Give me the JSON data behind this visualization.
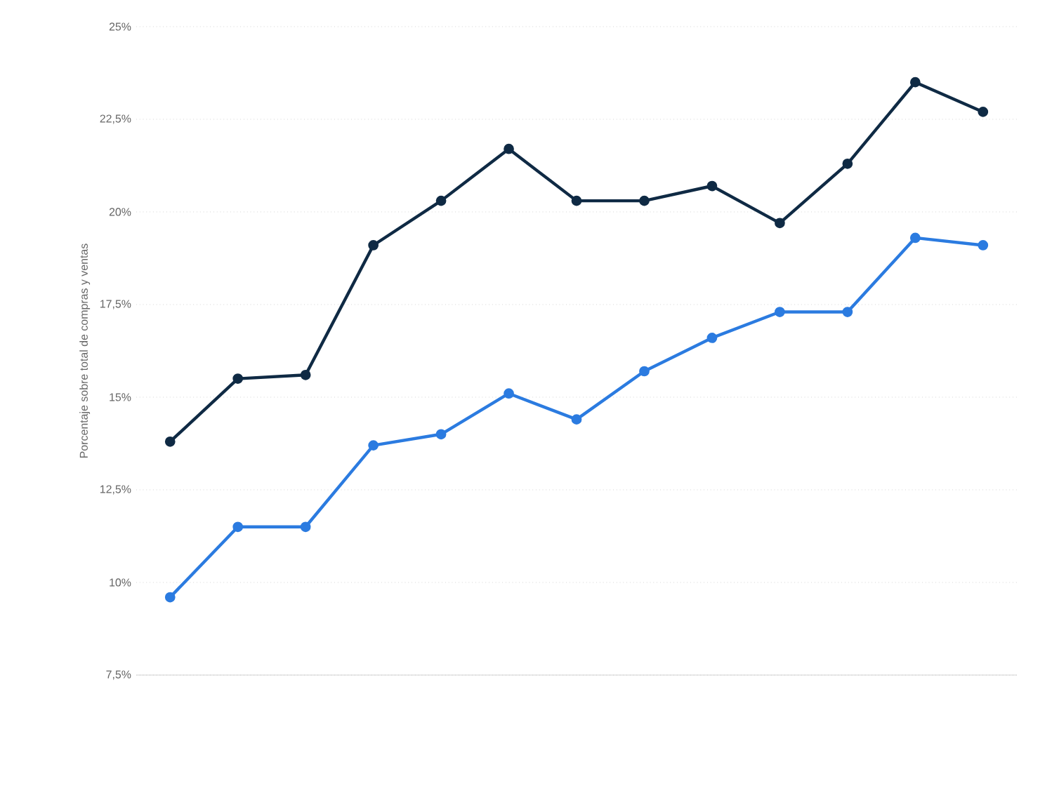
{
  "chart_data": {
    "type": "line",
    "ylabel": "Porcentaje sobre total de compras y ventas",
    "categories": [
      null,
      null,
      null,
      null,
      null,
      null,
      null,
      null,
      null,
      null,
      null,
      null,
      null
    ],
    "series": [
      {
        "color": "#0f2a44",
        "values": [
          13.8,
          15.5,
          15.6,
          19.1,
          20.3,
          21.7,
          20.3,
          20.3,
          20.7,
          19.7,
          21.3,
          23.5,
          22.7
        ]
      },
      {
        "color": "#2b7be0",
        "values": [
          9.6,
          11.5,
          11.5,
          13.7,
          14.0,
          15.1,
          14.4,
          15.7,
          16.6,
          17.3,
          17.3,
          19.3,
          19.1
        ]
      }
    ],
    "ylim": [
      7.5,
      25
    ],
    "yticks": [
      {
        "value": 7.5,
        "label": "7,5%"
      },
      {
        "value": 10,
        "label": "10%"
      },
      {
        "value": 12.5,
        "label": "12,5%"
      },
      {
        "value": 15,
        "label": "15%"
      },
      {
        "value": 17.5,
        "label": "17,5%"
      },
      {
        "value": 20,
        "label": "20%"
      },
      {
        "value": 22.5,
        "label": "22,5%"
      },
      {
        "value": 25,
        "label": "25%"
      }
    ],
    "grid": "y",
    "marker": "circle",
    "line_style": "solid"
  }
}
